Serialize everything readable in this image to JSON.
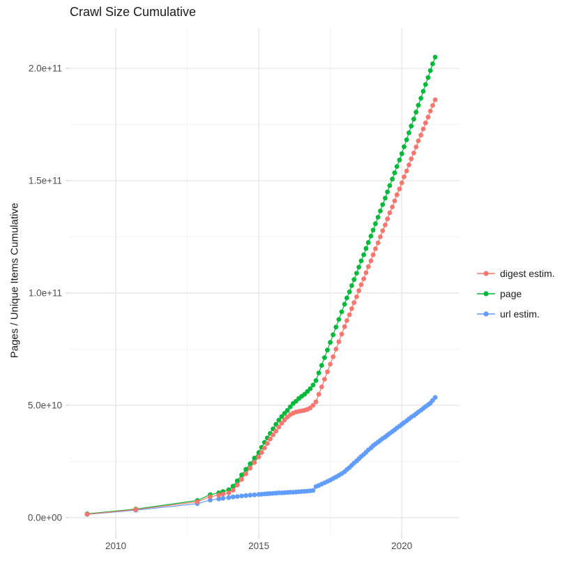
{
  "chart_data": {
    "type": "line",
    "title": "Crawl Size Cumulative",
    "xlabel": "",
    "ylabel": "Pages / Unique Items Cumulative",
    "legend_position": "right",
    "grid": true,
    "xlim": [
      2008.39,
      2022.02
    ],
    "ylim": [
      -7500000000.0,
      218000000000.0
    ],
    "x_ticks": [
      {
        "value": 2010,
        "label": "2010"
      },
      {
        "value": 2015,
        "label": "2015"
      },
      {
        "value": 2020,
        "label": "2020"
      }
    ],
    "x_minor": [
      2012.5,
      2017.5
    ],
    "y_ticks": [
      {
        "value": 0,
        "label": "0.0e+00"
      },
      {
        "value": 50000000000.0,
        "label": "5.0e+10"
      },
      {
        "value": 100000000000.0,
        "label": "1.0e+11"
      },
      {
        "value": 150000000000.0,
        "label": "1.5e+11"
      },
      {
        "value": 200000000000.0,
        "label": "2.0e+11"
      }
    ],
    "y_minor": [
      25000000000.0,
      75000000000.0,
      125000000000.0,
      175000000000.0
    ],
    "colors": {
      "grid_major": "#e3e3e3",
      "grid_minor": "#f2f2f2",
      "tick": "#d4d4d4",
      "axis_text": "#4d4d4d"
    },
    "values_unit": 1000000000.0,
    "x": [
      2009.0,
      2010.7,
      2012.85,
      2013.3,
      2013.6,
      2013.75,
      2013.95,
      2014.1,
      2014.25,
      2014.4,
      2014.55,
      2014.7,
      2014.85,
      2015.0,
      2015.1,
      2015.2,
      2015.3,
      2015.4,
      2015.5,
      2015.6,
      2015.7,
      2015.8,
      2015.9,
      2016.0,
      2016.1,
      2016.2,
      2016.3,
      2016.4,
      2016.5,
      2016.6,
      2016.7,
      2016.8,
      2016.9,
      2017.0,
      2017.1,
      2017.2,
      2017.3,
      2017.4,
      2017.5,
      2017.6,
      2017.7,
      2017.8,
      2017.9,
      2018.0,
      2018.08,
      2018.17,
      2018.25,
      2018.33,
      2018.42,
      2018.5,
      2018.58,
      2018.67,
      2018.75,
      2018.83,
      2018.92,
      2019.0,
      2019.08,
      2019.17,
      2019.25,
      2019.33,
      2019.42,
      2019.5,
      2019.58,
      2019.67,
      2019.75,
      2019.83,
      2019.92,
      2020.0,
      2020.08,
      2020.17,
      2020.25,
      2020.33,
      2020.42,
      2020.5,
      2020.58,
      2020.67,
      2020.75,
      2020.83,
      2020.92,
      2021.0,
      2021.08,
      2021.17
    ],
    "series": [
      {
        "name": "digest estim.",
        "color": "#F8766D",
        "values": [
          1.5,
          3.6,
          7.0,
          9.3,
          10.0,
          10.5,
          11.0,
          12.2,
          14.5,
          17.0,
          19.5,
          22.0,
          24.5,
          27.0,
          29.0,
          31.0,
          33.0,
          35.0,
          36.8,
          38.5,
          40.3,
          42.0,
          43.5,
          44.8,
          45.8,
          46.5,
          47.0,
          47.3,
          47.5,
          47.8,
          48.2,
          48.8,
          50.0,
          51.5,
          54.9,
          58.2,
          61.6,
          64.9,
          68.3,
          71.6,
          75.0,
          78.3,
          81.7,
          85.0,
          87.7,
          90.3,
          93.0,
          95.7,
          98.3,
          101.0,
          103.7,
          106.3,
          109.0,
          111.7,
          114.3,
          117.0,
          119.7,
          122.3,
          125.0,
          127.7,
          130.3,
          133.0,
          135.7,
          138.3,
          141.0,
          143.7,
          146.3,
          149.0,
          151.7,
          154.3,
          157.0,
          159.7,
          162.3,
          165.0,
          167.7,
          170.3,
          173.0,
          175.7,
          178.3,
          181.0,
          183.5,
          186.0
        ]
      },
      {
        "name": "page",
        "color": "#00BA38",
        "values": [
          1.7,
          3.8,
          7.6,
          10.2,
          11.0,
          11.6,
          12.4,
          14.0,
          16.4,
          19.0,
          21.5,
          24.0,
          26.5,
          29.0,
          31.3,
          33.5,
          35.5,
          37.5,
          39.5,
          41.5,
          43.4,
          45.0,
          46.4,
          47.7,
          49.3,
          50.8,
          51.8,
          53.0,
          54.0,
          54.9,
          56.1,
          57.4,
          59.0,
          61.0,
          64.4,
          67.8,
          71.2,
          74.6,
          78.0,
          81.4,
          84.8,
          88.2,
          91.6,
          95.0,
          97.8,
          100.5,
          103.3,
          106.0,
          108.8,
          111.5,
          114.3,
          117.0,
          119.8,
          122.5,
          125.3,
          128.0,
          130.8,
          133.7,
          136.5,
          139.3,
          142.2,
          145.0,
          147.8,
          150.7,
          153.5,
          156.3,
          159.2,
          162.0,
          165.1,
          168.2,
          171.3,
          174.3,
          177.4,
          180.5,
          183.6,
          186.7,
          189.8,
          192.8,
          195.9,
          199.0,
          202.0,
          205.0
        ]
      },
      {
        "name": "url estim.",
        "color": "#619CFF",
        "values": [
          1.4,
          3.3,
          6.2,
          7.8,
          8.3,
          8.6,
          8.9,
          9.2,
          9.4,
          9.6,
          9.8,
          10.0,
          10.1,
          10.3,
          10.4,
          10.5,
          10.6,
          10.7,
          10.8,
          10.9,
          11.0,
          11.0,
          11.1,
          11.2,
          11.3,
          11.3,
          11.4,
          11.5,
          11.6,
          11.7,
          11.8,
          11.9,
          12.1,
          13.8,
          14.3,
          14.9,
          15.5,
          16.1,
          16.7,
          17.4,
          18.1,
          18.8,
          19.6,
          20.4,
          21.4,
          22.3,
          23.3,
          24.3,
          25.2,
          26.2,
          27.2,
          28.1,
          29.1,
          30.1,
          31.0,
          32.0,
          32.8,
          33.6,
          34.4,
          35.2,
          35.9,
          36.7,
          37.5,
          38.3,
          39.1,
          39.9,
          40.7,
          41.5,
          42.3,
          43.1,
          43.9,
          44.7,
          45.4,
          46.2,
          47.0,
          47.8,
          48.6,
          49.4,
          50.2,
          51.0,
          52.2,
          53.5
        ]
      }
    ]
  }
}
